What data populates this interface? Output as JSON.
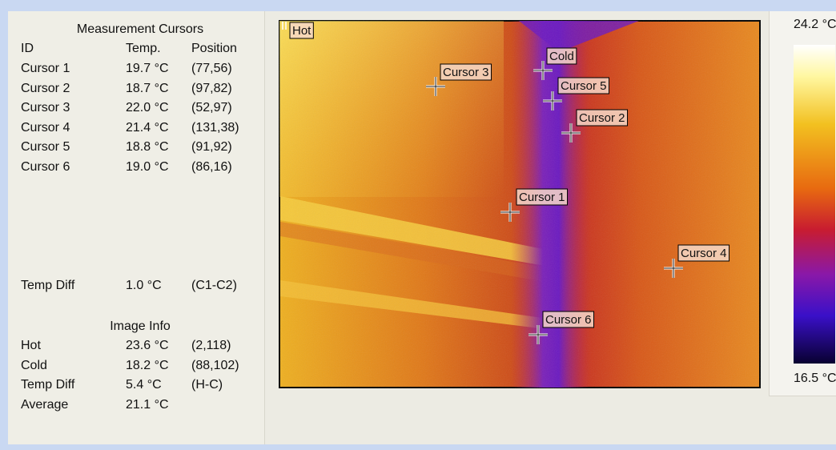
{
  "panel": {
    "title": "Measurement Cursors",
    "headers": [
      "ID",
      "Temp.",
      "Position"
    ],
    "rows": [
      [
        "Cursor 1",
        "19.7 °C",
        "(77,56)"
      ],
      [
        "Cursor 2",
        "18.7 °C",
        "(97,82)"
      ],
      [
        "Cursor 3",
        "22.0 °C",
        "(52,97)"
      ],
      [
        "Cursor 4",
        "21.4 °C",
        "(131,38)"
      ],
      [
        "Cursor 5",
        "18.8 °C",
        "(91,92)"
      ],
      [
        "Cursor 6",
        "19.0 °C",
        "(86,16)"
      ]
    ],
    "temp_diff": [
      "Temp Diff",
      "1.0 °C",
      "(C1-C2)"
    ],
    "image_info_title": "Image Info",
    "image_info": [
      [
        "Hot",
        "23.6 °C",
        "(2,118)"
      ],
      [
        "Cold",
        "18.2 °C",
        "(88,102)"
      ],
      [
        "Temp Diff",
        "5.4 °C",
        "(H-C)"
      ],
      [
        "Average",
        "21.1 °C"
      ]
    ]
  },
  "image": {
    "markers": [
      "Hot",
      "Cold",
      "Cursor 3",
      "Cursor 5",
      "Cursor 2",
      "Cursor 1",
      "Cursor 4",
      "Cursor 6"
    ]
  },
  "scale": {
    "max": "24.2 °C",
    "min": "16.5 °C"
  }
}
